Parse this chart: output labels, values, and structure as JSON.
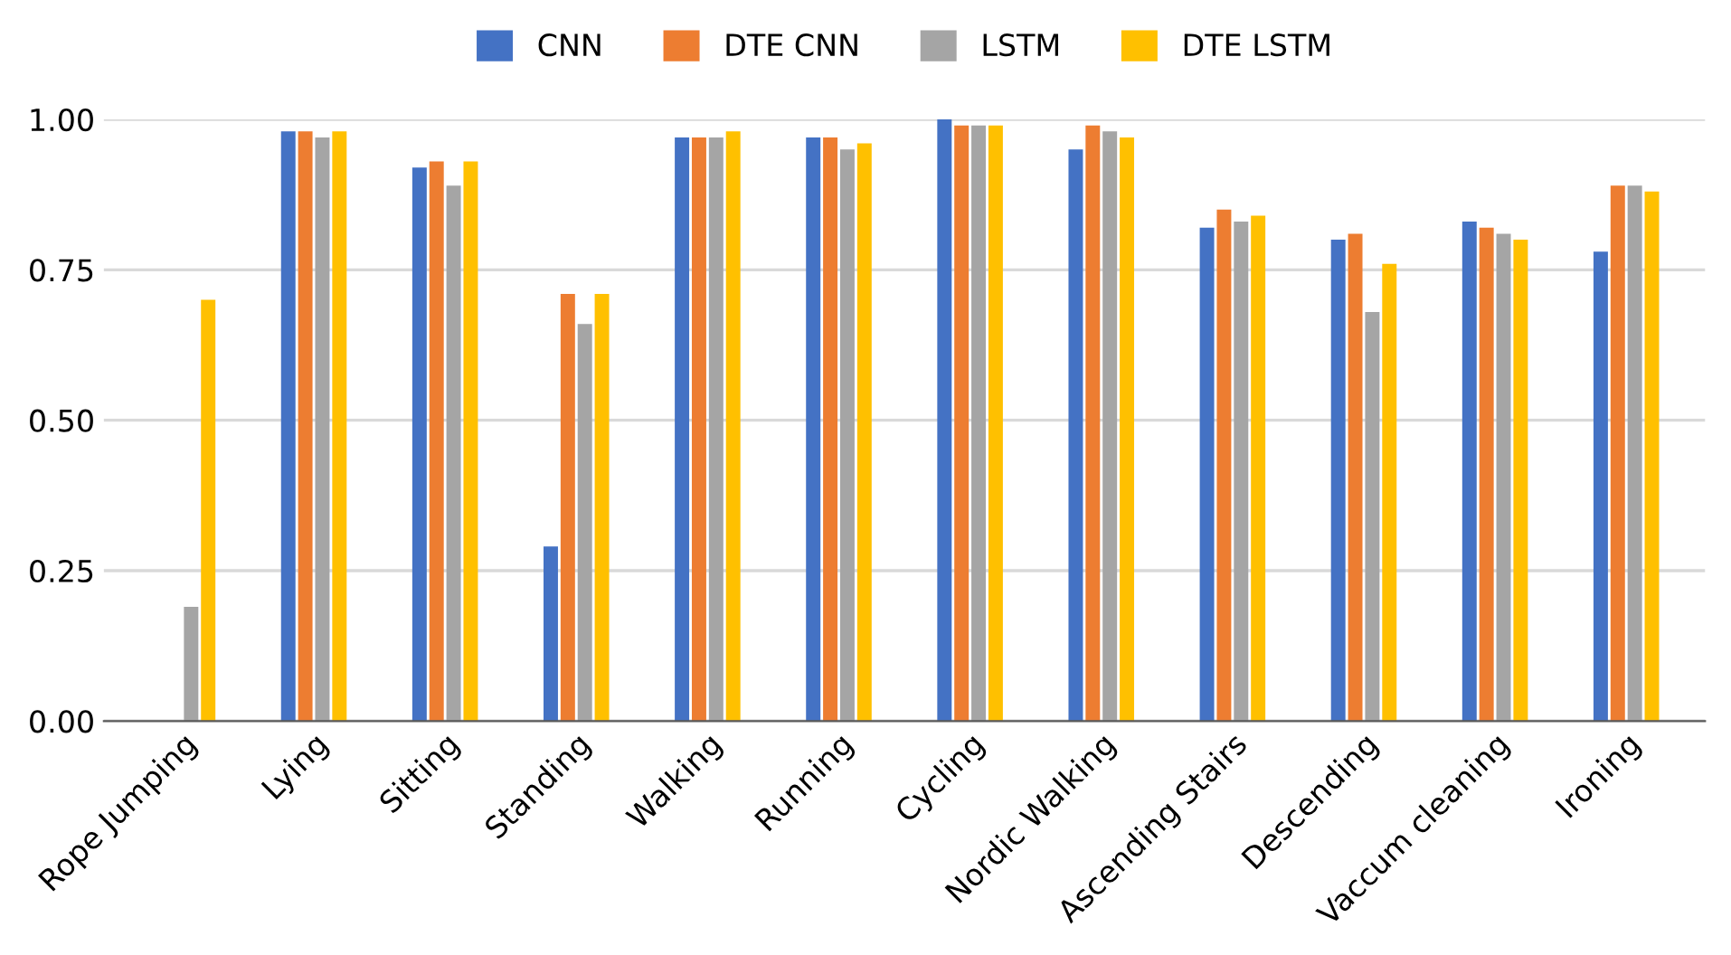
{
  "chart_data": {
    "type": "bar",
    "categories": [
      "Rope Jumping",
      "Lying",
      "Sitting",
      "Standing",
      "Walking",
      "Running",
      "Cycling",
      "Nordic Walking",
      "Ascending Stairs",
      "Descending",
      "Vaccum cleaning",
      "Ironing"
    ],
    "series": [
      {
        "name": "CNN",
        "color": "#4472c4",
        "values": [
          0,
          0.98,
          0.92,
          0.29,
          0.97,
          0.97,
          1.0,
          0.95,
          0.82,
          0.8,
          0.83,
          0.78
        ]
      },
      {
        "name": "DTE CNN",
        "color": "#ed7d31",
        "values": [
          0,
          0.98,
          0.93,
          0.71,
          0.97,
          0.97,
          0.99,
          0.99,
          0.85,
          0.81,
          0.82,
          0.89
        ]
      },
      {
        "name": "LSTM",
        "color": "#a5a5a5",
        "values": [
          0.19,
          0.97,
          0.89,
          0.66,
          0.97,
          0.95,
          0.99,
          0.98,
          0.83,
          0.68,
          0.81,
          0.89
        ]
      },
      {
        "name": "DTE LSTM",
        "color": "#ffc000",
        "values": [
          0.7,
          0.98,
          0.93,
          0.71,
          0.98,
          0.96,
          0.99,
          0.97,
          0.84,
          0.76,
          0.8,
          0.88
        ]
      }
    ],
    "ylim": [
      0,
      1.0
    ],
    "yticks": [
      {
        "value": 0,
        "label": "0.00"
      },
      {
        "value": 0.25,
        "label": "0.25"
      },
      {
        "value": 0.5,
        "label": "0.50"
      },
      {
        "value": 0.75,
        "label": "0.75"
      },
      {
        "value": 1.0,
        "label": "1.00"
      }
    ],
    "grid": "y",
    "legend": "top"
  }
}
